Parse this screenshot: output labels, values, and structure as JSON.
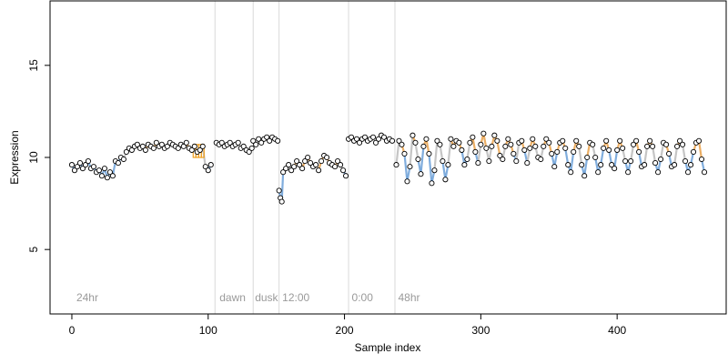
{
  "chart_data": {
    "type": "scatter",
    "xlabel": "Sample index",
    "ylabel": "Expression",
    "xlim": [
      -16,
      480
    ],
    "ylim": [
      1.5,
      18.5
    ],
    "x_ticks": [
      0,
      100,
      200,
      300,
      400
    ],
    "y_ticks": [
      5,
      10,
      15
    ],
    "segment_boundaries": [
      105,
      133,
      152,
      203,
      237
    ],
    "segment_labels": [
      {
        "text": "24hr",
        "x": 2
      },
      {
        "text": "dawn",
        "x": 107
      },
      {
        "text": "dusk",
        "x": 133
      },
      {
        "text": "12:00",
        "x": 153
      },
      {
        "text": "0:00",
        "x": 204
      },
      {
        "text": "48hr",
        "x": 238
      }
    ],
    "colors": {
      "points_fill": "#ffffff",
      "points_stroke": "#000000",
      "line_low": "#6a9fd8",
      "line_high": "#e8a04a",
      "line_neutral": "#bbbbbb",
      "highlight_bars": "#f0a020",
      "boundary": "#d9d9d9",
      "axis": "#000000"
    },
    "series": [
      {
        "x": [
          0,
          2,
          4,
          6,
          8,
          10,
          12,
          14,
          16,
          18,
          20,
          22,
          24,
          26,
          28,
          30,
          32,
          34,
          36,
          38,
          40,
          42,
          44,
          46,
          48,
          50,
          52,
          54,
          56,
          58,
          60,
          62,
          64,
          66,
          68,
          70,
          72,
          74,
          76,
          78,
          80,
          82,
          84,
          86,
          88,
          90,
          92,
          94,
          96,
          98,
          100,
          102
        ],
        "y": [
          9.6,
          9.3,
          9.5,
          9.7,
          9.4,
          9.6,
          9.8,
          9.4,
          9.5,
          9.2,
          9.3,
          9.0,
          9.4,
          8.9,
          9.2,
          9.0,
          9.8,
          9.7,
          10.0,
          9.9,
          10.3,
          10.5,
          10.4,
          10.6,
          10.7,
          10.5,
          10.6,
          10.4,
          10.7,
          10.6,
          10.5,
          10.8,
          10.6,
          10.7,
          10.5,
          10.6,
          10.8,
          10.7,
          10.6,
          10.5,
          10.7,
          10.6,
          10.8,
          10.5,
          10.4,
          10.6,
          10.3,
          10.4,
          10.6,
          9.5,
          9.3,
          9.6
        ]
      },
      {
        "x": [
          106,
          108,
          110,
          112,
          114,
          116,
          118,
          120,
          122,
          124,
          126,
          128,
          130,
          132
        ],
        "y": [
          10.8,
          10.7,
          10.8,
          10.6,
          10.7,
          10.8,
          10.6,
          10.7,
          10.8,
          10.5,
          10.6,
          10.4,
          10.3,
          10.5
        ]
      },
      {
        "x": [
          133,
          135,
          137,
          139,
          141,
          143,
          145,
          147,
          149,
          151
        ],
        "y": [
          10.9,
          10.7,
          11.0,
          10.8,
          11.0,
          11.1,
          10.9,
          11.1,
          11.0,
          10.9
        ]
      },
      {
        "x": [
          152,
          153,
          154,
          155,
          157,
          159,
          161,
          163,
          165,
          167,
          169,
          171,
          173,
          175,
          177,
          179,
          181,
          183,
          185,
          187,
          189,
          191,
          193,
          195,
          197,
          199,
          201
        ],
        "y": [
          8.2,
          7.8,
          7.6,
          9.2,
          9.4,
          9.6,
          9.3,
          9.5,
          9.8,
          9.6,
          9.4,
          9.8,
          10.0,
          9.7,
          9.5,
          9.6,
          9.3,
          9.8,
          10.1,
          10.0,
          9.7,
          9.6,
          9.5,
          9.8,
          9.6,
          9.3,
          9.0
        ]
      },
      {
        "x": [
          203,
          205,
          207,
          209,
          211,
          213,
          215,
          217,
          219,
          221,
          223,
          225,
          227,
          229,
          231,
          233,
          235
        ],
        "y": [
          11.0,
          11.1,
          10.9,
          11.0,
          10.8,
          11.0,
          11.1,
          10.9,
          11.0,
          11.1,
          10.8,
          11.0,
          11.2,
          11.1,
          10.9,
          11.0,
          10.9
        ]
      },
      {
        "x": [
          238,
          240,
          242,
          244,
          246,
          248,
          250,
          252,
          254,
          256,
          258,
          260,
          262,
          264,
          266,
          268,
          270,
          272,
          274,
          276,
          278,
          280,
          282,
          284,
          286,
          288,
          290,
          292,
          294,
          296,
          298,
          300,
          302,
          304,
          306,
          308,
          310,
          312,
          314,
          316,
          318,
          320,
          322,
          324,
          326,
          328,
          330,
          332,
          334,
          336,
          338,
          340,
          342,
          344,
          346,
          348,
          350,
          352,
          354,
          356,
          358,
          360,
          362,
          364,
          366,
          368,
          370,
          372,
          374,
          376,
          378,
          380,
          382,
          384,
          386,
          388,
          390,
          392,
          394,
          396,
          398,
          400,
          402,
          404,
          406,
          408,
          410,
          412,
          414,
          416,
          418,
          420,
          422,
          424,
          426,
          428,
          430,
          432,
          434,
          436,
          438,
          440,
          442,
          444,
          446,
          448,
          450,
          452,
          454,
          456,
          458,
          460,
          462,
          464
        ],
        "y": [
          9.6,
          10.9,
          10.7,
          10.2,
          8.7,
          9.5,
          11.2,
          10.8,
          9.9,
          9.1,
          10.6,
          11.0,
          10.2,
          8.6,
          9.3,
          10.9,
          10.7,
          9.8,
          8.8,
          9.6,
          11.0,
          10.6,
          10.9,
          10.8,
          10.4,
          9.6,
          9.9,
          10.8,
          11.1,
          10.3,
          9.7,
          10.7,
          11.3,
          10.5,
          9.8,
          10.6,
          11.2,
          10.9,
          10.1,
          9.9,
          10.6,
          11.0,
          10.7,
          10.2,
          9.8,
          10.8,
          10.9,
          10.4,
          9.7,
          10.5,
          11.0,
          10.6,
          10.0,
          9.9,
          10.6,
          11.0,
          10.8,
          10.2,
          9.5,
          10.3,
          10.8,
          10.9,
          10.5,
          9.6,
          9.2,
          10.3,
          10.9,
          10.6,
          9.6,
          9.0,
          10.0,
          10.8,
          10.7,
          10.0,
          9.2,
          9.6,
          10.5,
          10.9,
          10.4,
          9.6,
          9.4,
          10.4,
          10.9,
          10.5,
          9.8,
          9.2,
          9.8,
          10.7,
          10.9,
          10.3,
          9.5,
          9.6,
          10.6,
          10.9,
          10.6,
          9.7,
          9.2,
          9.9,
          10.8,
          10.7,
          10.2,
          9.5,
          9.6,
          10.6,
          10.9,
          10.7,
          9.8,
          9.2,
          9.6,
          10.3,
          10.8,
          10.9,
          9.9,
          9.2
        ]
      }
    ]
  }
}
